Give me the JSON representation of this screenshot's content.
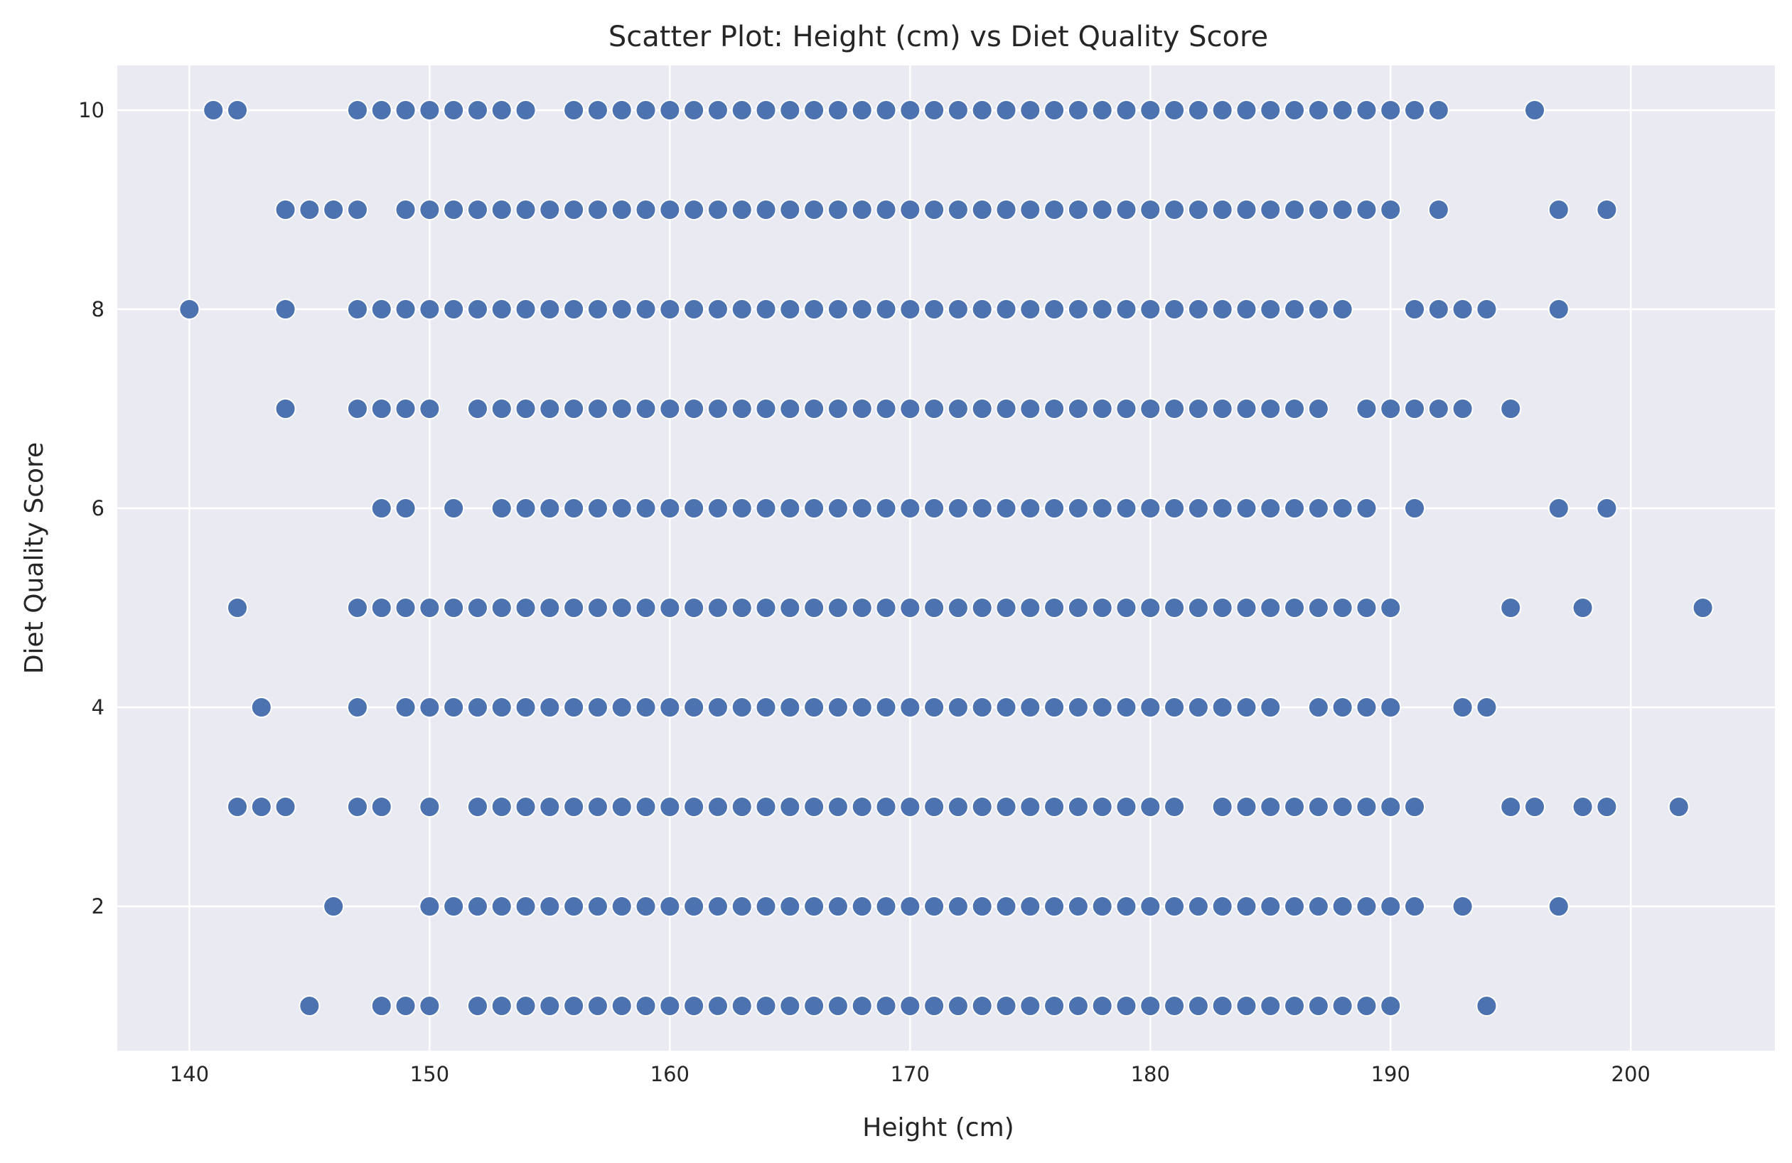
{
  "chart_data": {
    "type": "scatter",
    "title": "Scatter Plot: Height (cm) vs Diet Quality Score",
    "xlabel": "Height (cm)",
    "ylabel": "Diet Quality Score",
    "xlim": [
      137,
      206
    ],
    "ylim": [
      0.55,
      10.45
    ],
    "xticks": [
      140,
      150,
      160,
      170,
      180,
      190,
      200
    ],
    "yticks": [
      2,
      4,
      6,
      8,
      10
    ],
    "grid": true,
    "background_color": "#eaeaf2",
    "point_color": "#4c72b0",
    "point_edge_color": "#ffffff",
    "series": [
      {
        "rows": [
          {
            "y": 10,
            "x": [
              141,
              142,
              147,
              148,
              149,
              150,
              151,
              152,
              153,
              154,
              156,
              157,
              158,
              159,
              160,
              161,
              162,
              163,
              164,
              165,
              166,
              167,
              168,
              169,
              170,
              171,
              172,
              173,
              174,
              175,
              176,
              177,
              178,
              179,
              180,
              181,
              182,
              183,
              184,
              185,
              186,
              187,
              188,
              189,
              190,
              191,
              192,
              196
            ]
          },
          {
            "y": 9,
            "x": [
              144,
              145,
              146,
              147,
              149,
              150,
              151,
              152,
              153,
              154,
              155,
              156,
              157,
              158,
              159,
              160,
              161,
              162,
              163,
              164,
              165,
              166,
              167,
              168,
              169,
              170,
              171,
              172,
              173,
              174,
              175,
              176,
              177,
              178,
              179,
              180,
              181,
              182,
              183,
              184,
              185,
              186,
              187,
              188,
              189,
              190,
              192,
              197,
              199
            ]
          },
          {
            "y": 8,
            "x": [
              140,
              144,
              147,
              148,
              149,
              150,
              151,
              152,
              153,
              154,
              155,
              156,
              157,
              158,
              159,
              160,
              161,
              162,
              163,
              164,
              165,
              166,
              167,
              168,
              169,
              170,
              171,
              172,
              173,
              174,
              175,
              176,
              177,
              178,
              179,
              180,
              181,
              182,
              183,
              184,
              185,
              186,
              187,
              188,
              191,
              192,
              193,
              194,
              197
            ]
          },
          {
            "y": 7,
            "x": [
              144,
              147,
              148,
              149,
              150,
              152,
              153,
              154,
              155,
              156,
              157,
              158,
              159,
              160,
              161,
              162,
              163,
              164,
              165,
              166,
              167,
              168,
              169,
              170,
              171,
              172,
              173,
              174,
              175,
              176,
              177,
              178,
              179,
              180,
              181,
              182,
              183,
              184,
              185,
              186,
              187,
              189,
              190,
              191,
              192,
              193,
              195
            ]
          },
          {
            "y": 6,
            "x": [
              148,
              149,
              151,
              153,
              154,
              155,
              156,
              157,
              158,
              159,
              160,
              161,
              162,
              163,
              164,
              165,
              166,
              167,
              168,
              169,
              170,
              171,
              172,
              173,
              174,
              175,
              176,
              177,
              178,
              179,
              180,
              181,
              182,
              183,
              184,
              185,
              186,
              187,
              188,
              189,
              191,
              197,
              199
            ]
          },
          {
            "y": 5,
            "x": [
              142,
              147,
              148,
              149,
              150,
              151,
              152,
              153,
              154,
              155,
              156,
              157,
              158,
              159,
              160,
              161,
              162,
              163,
              164,
              165,
              166,
              167,
              168,
              169,
              170,
              171,
              172,
              173,
              174,
              175,
              176,
              177,
              178,
              179,
              180,
              181,
              182,
              183,
              184,
              185,
              186,
              187,
              188,
              189,
              190,
              195,
              198,
              203
            ]
          },
          {
            "y": 4,
            "x": [
              143,
              147,
              149,
              150,
              151,
              152,
              153,
              154,
              155,
              156,
              157,
              158,
              159,
              160,
              161,
              162,
              163,
              164,
              165,
              166,
              167,
              168,
              169,
              170,
              171,
              172,
              173,
              174,
              175,
              176,
              177,
              178,
              179,
              180,
              181,
              182,
              183,
              184,
              185,
              187,
              188,
              189,
              190,
              193,
              194
            ]
          },
          {
            "y": 3,
            "x": [
              142,
              143,
              144,
              147,
              148,
              150,
              152,
              153,
              154,
              155,
              156,
              157,
              158,
              159,
              160,
              161,
              162,
              163,
              164,
              165,
              166,
              167,
              168,
              169,
              170,
              171,
              172,
              173,
              174,
              175,
              176,
              177,
              178,
              179,
              180,
              181,
              183,
              184,
              185,
              186,
              187,
              188,
              189,
              190,
              191,
              195,
              196,
              198,
              199,
              202
            ]
          },
          {
            "y": 2,
            "x": [
              146,
              150,
              151,
              152,
              153,
              154,
              155,
              156,
              157,
              158,
              159,
              160,
              161,
              162,
              163,
              164,
              165,
              166,
              167,
              168,
              169,
              170,
              171,
              172,
              173,
              174,
              175,
              176,
              177,
              178,
              179,
              180,
              181,
              182,
              183,
              184,
              185,
              186,
              187,
              188,
              189,
              190,
              191,
              193,
              197
            ]
          },
          {
            "y": 1,
            "x": [
              145,
              148,
              149,
              150,
              152,
              153,
              154,
              155,
              156,
              157,
              158,
              159,
              160,
              161,
              162,
              163,
              164,
              165,
              166,
              167,
              168,
              169,
              170,
              171,
              172,
              173,
              174,
              175,
              176,
              177,
              178,
              179,
              180,
              181,
              182,
              183,
              184,
              185,
              186,
              187,
              188,
              189,
              190,
              194
            ]
          }
        ]
      }
    ]
  }
}
